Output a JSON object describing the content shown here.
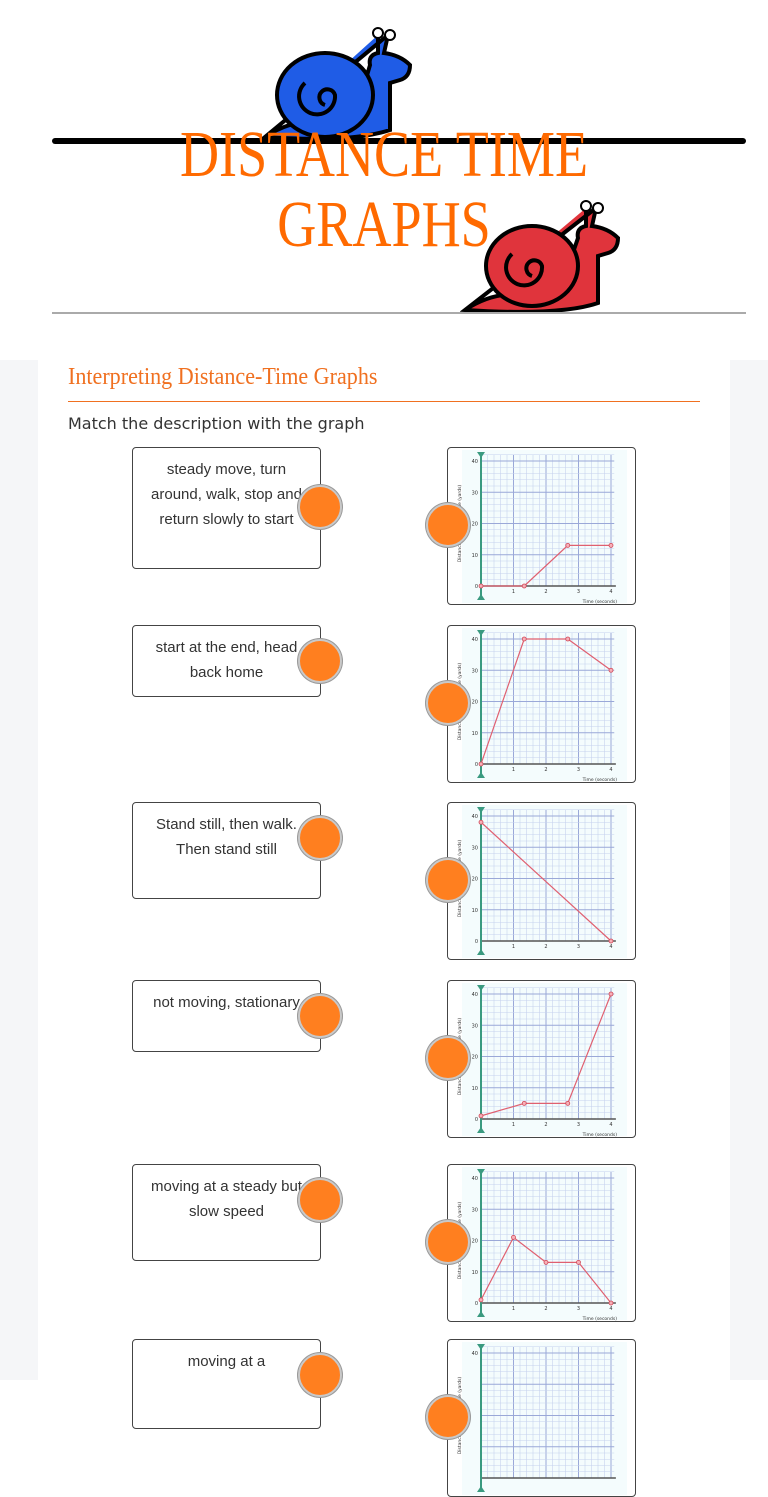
{
  "header": {
    "title_line1": "DISTANCE TIME",
    "title_line2": "GRAPHS",
    "colors": {
      "title": "#ff6a00",
      "snail_top": "#1f5ce6",
      "snail_bottom": "#e0343c"
    }
  },
  "section": {
    "title": "Interpreting Distance-Time Graphs",
    "instruction": "Match the description with the graph"
  },
  "descriptions": [
    "steady move, turn around, walk, stop and return slowly to start",
    "start at the end, head back home",
    "Stand still, then walk. Then stand still",
    "not moving, stationary",
    "moving at a steady but slow speed",
    "moving at a"
  ],
  "accent": "#ff7f1f",
  "chart_data": [
    {
      "type": "line",
      "xlabel": "Time (seconds)",
      "ylabel": "Distance from starting line (yards)",
      "xlim": [
        0,
        4
      ],
      "ylim": [
        0,
        40
      ],
      "x_ticks": [
        "1",
        "2",
        "3",
        "4"
      ],
      "y_ticks": [
        "0",
        "10",
        "20",
        "30",
        "40"
      ],
      "grid": true,
      "x": [
        0,
        1.33,
        2.67,
        4
      ],
      "y": [
        0,
        0,
        13,
        13
      ]
    },
    {
      "type": "line",
      "xlabel": "Time (seconds)",
      "ylabel": "Distance from starting line (yards)",
      "xlim": [
        0,
        4
      ],
      "ylim": [
        0,
        40
      ],
      "x_ticks": [
        "1",
        "2",
        "3",
        "4"
      ],
      "y_ticks": [
        "0",
        "10",
        "20",
        "30",
        "40"
      ],
      "grid": true,
      "x": [
        0,
        1.33,
        2.67,
        4
      ],
      "y": [
        0,
        40,
        40,
        30
      ]
    },
    {
      "type": "line",
      "xlabel": "",
      "ylabel": "Distance from starting line (yards)",
      "xlim": [
        0,
        4
      ],
      "ylim": [
        0,
        40
      ],
      "x_ticks": [
        "1",
        "2",
        "3",
        "4"
      ],
      "y_ticks": [
        "0",
        "10",
        "20",
        "30",
        "40"
      ],
      "grid": true,
      "x": [
        0,
        4
      ],
      "y": [
        38,
        0
      ]
    },
    {
      "type": "line",
      "xlabel": "Time (seconds)",
      "ylabel": "Distance from starting line (yards)",
      "xlim": [
        0,
        4
      ],
      "ylim": [
        0,
        40
      ],
      "x_ticks": [
        "1",
        "2",
        "3",
        "4"
      ],
      "y_ticks": [
        "0",
        "10",
        "20",
        "30",
        "40"
      ],
      "grid": true,
      "x": [
        0,
        1.33,
        2.67,
        4
      ],
      "y": [
        1,
        5,
        5,
        40
      ]
    },
    {
      "type": "line",
      "xlabel": "Time (seconds)",
      "ylabel": "Distance from starting line (yards)",
      "xlim": [
        0,
        4
      ],
      "ylim": [
        0,
        40
      ],
      "x_ticks": [
        "1",
        "2",
        "3",
        "4"
      ],
      "y_ticks": [
        "0",
        "10",
        "20",
        "30",
        "40"
      ],
      "grid": true,
      "x": [
        0,
        1,
        2,
        3,
        4
      ],
      "y": [
        1,
        21,
        13,
        13,
        0
      ]
    },
    {
      "type": "line",
      "xlabel": "",
      "ylabel": "Distance from starting line (yards)",
      "xlim": [
        0,
        4
      ],
      "ylim": [
        0,
        40
      ],
      "x_ticks": [],
      "y_ticks": [
        "40"
      ],
      "grid": true,
      "x": [],
      "y": []
    }
  ]
}
